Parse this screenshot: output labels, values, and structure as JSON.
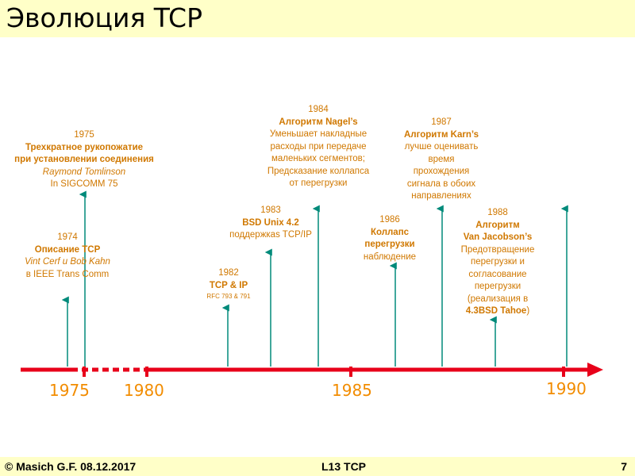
{
  "title": "Эволюция TCP",
  "axis_years": [
    "1975",
    "1980",
    "1985",
    "1990"
  ],
  "events": {
    "e1974": {
      "year": "1974",
      "name": "Описание TCP",
      "authors": "Vint Cerf и Bob Kahn",
      "venue": "в IEEE Trans Comm"
    },
    "e1975": {
      "year": "1975",
      "line1": "Трехкратное рукопожатие",
      "line2": "при установлении соединения",
      "author": "Raymond Tomlinson",
      "venue": "In SIGCOMM 75"
    },
    "e1982": {
      "year": "1982",
      "name": "TCP & IP",
      "rfc": "RFC 793 & 791"
    },
    "e1983": {
      "year": "1983",
      "name": "BSD Unix 4.2",
      "desc": "поддержкаs TCP/IP"
    },
    "e1984": {
      "year": "1984",
      "name": "Алгоритм Nagel’s",
      "d1": "Уменьшает накладные",
      "d2": "расходы при передаче",
      "d3": "маленьких сегментов;",
      "d4": "Предсказание коллапса",
      "d5": "от перегрузки"
    },
    "e1986": {
      "year": "1986",
      "name1": "Коллапс",
      "name2": "перегрузки",
      "desc": "наблюдение"
    },
    "e1987": {
      "year": "1987",
      "name": "Алгоритм Karn’s",
      "d1": "лучше оценивать",
      "d2": "время",
      "d3": "прохождения",
      "d4": "сигнала в обоих",
      "d5": "направлениях"
    },
    "e1988": {
      "year": "1988",
      "name1": "Алгоритм",
      "name2": "Van Jacobson’s",
      "d1": "Предотвращение",
      "d2": "перегрузки и",
      "d3": "согласование",
      "d4": "перегрузки",
      "d5": "(реализация в",
      "d6": "4.3BSD Tahoe",
      "d7": ")"
    }
  },
  "footer": {
    "left": "© Masich G.F. 08.12.2017",
    "center": "L13 TCP",
    "page": "7"
  },
  "colors": {
    "line": "#e8001a",
    "arrow": "#008a7a",
    "label": "#d07800",
    "band": "#ffffc8"
  }
}
